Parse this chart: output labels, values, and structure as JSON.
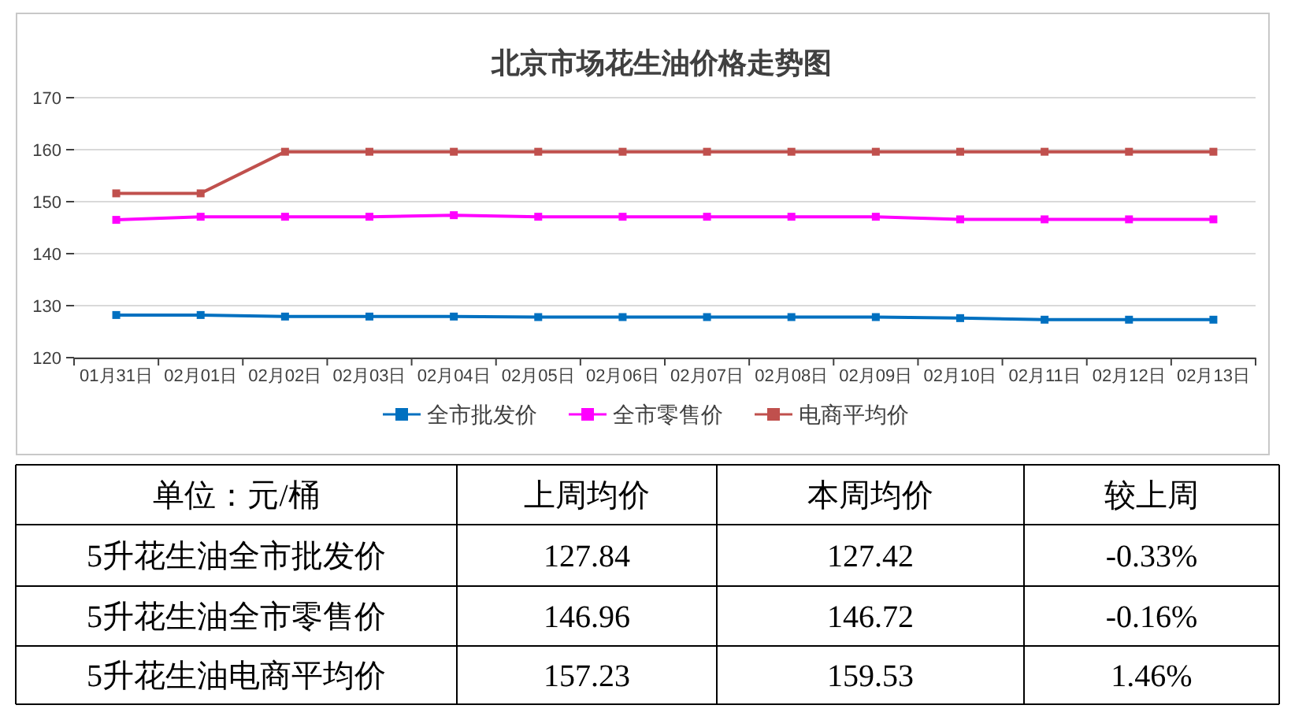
{
  "chart_data": {
    "type": "line",
    "title": "北京市场花生油价格走势图",
    "categories": [
      "01月31日",
      "02月01日",
      "02月02日",
      "02月03日",
      "02月04日",
      "02月05日",
      "02月06日",
      "02月07日",
      "02月08日",
      "02月09日",
      "02月10日",
      "02月11日",
      "02月12日",
      "02月13日"
    ],
    "series": [
      {
        "name": "全市批发价",
        "color": "#0070c0",
        "values": [
          128.2,
          128.2,
          127.9,
          127.9,
          127.9,
          127.8,
          127.8,
          127.8,
          127.8,
          127.8,
          127.6,
          127.3,
          127.3,
          127.3
        ]
      },
      {
        "name": "全市零售价",
        "color": "#ff00ff",
        "values": [
          146.5,
          147.1,
          147.1,
          147.1,
          147.4,
          147.1,
          147.1,
          147.1,
          147.1,
          147.1,
          146.6,
          146.6,
          146.6,
          146.6
        ]
      },
      {
        "name": "电商平均价",
        "color": "#c0504d",
        "values": [
          151.6,
          151.6,
          159.6,
          159.6,
          159.6,
          159.6,
          159.6,
          159.6,
          159.6,
          159.6,
          159.6,
          159.6,
          159.6,
          159.6
        ]
      }
    ],
    "ylim": [
      120,
      170
    ],
    "yticks": [
      120,
      130,
      140,
      150,
      160,
      170
    ],
    "grid": "y",
    "legend": "bottom",
    "marker": "square",
    "line_style": "solid",
    "annotations": [
      "单位：元/桶",
      "上周均价",
      "本周均价",
      "较上周",
      "5升花生油全市批发价",
      "127.84",
      "127.42",
      "-0.33%",
      "5升花生油全市零售价",
      "146.96",
      "146.72",
      "-0.16%",
      "5升花生油电商平均价",
      "157.23",
      "159.53",
      "1.46%"
    ]
  }
}
